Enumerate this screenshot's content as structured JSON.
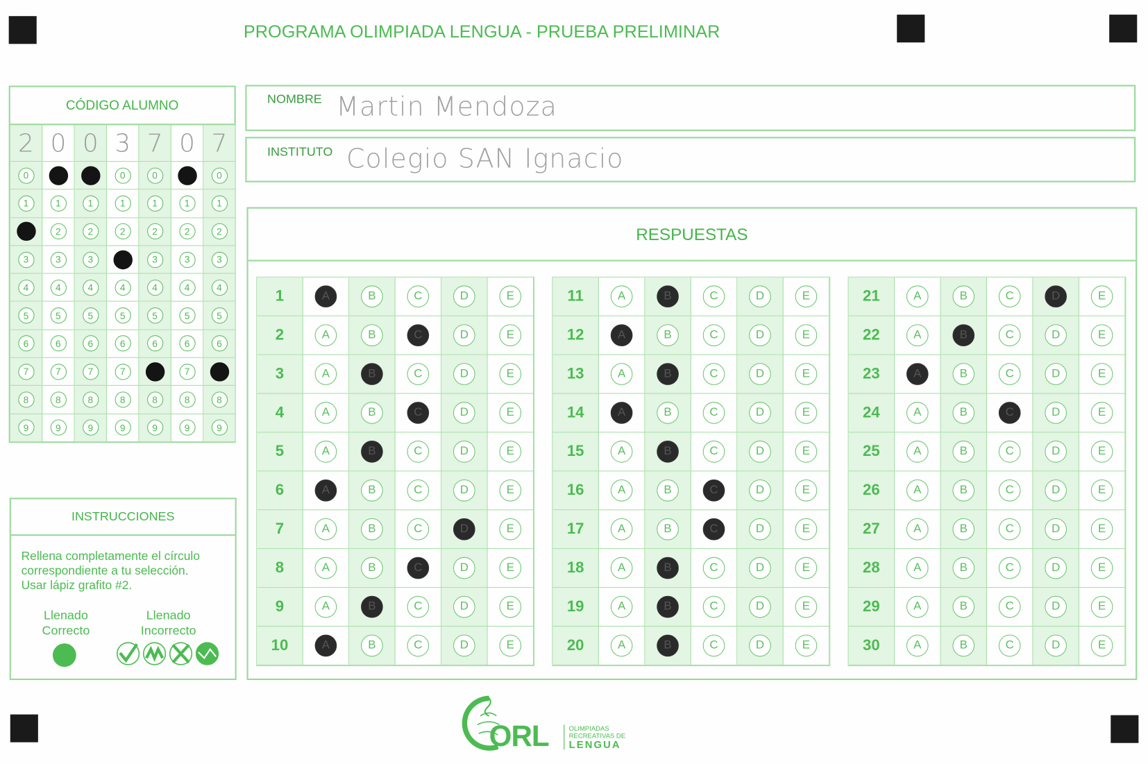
{
  "title": "PROGRAMA OLIMPIADA LENGUA  - PRUEBA PRELIMINAR",
  "student_code": {
    "label": "CÓDIGO ALUMNO",
    "digits": [
      "2",
      "0",
      "0",
      "3",
      "7",
      "0",
      "7"
    ],
    "bubble_values": [
      "0",
      "1",
      "2",
      "3",
      "4",
      "5",
      "6",
      "7",
      "8",
      "9"
    ]
  },
  "name_field": {
    "label": "NOMBRE",
    "value": "Martin   Mendoza"
  },
  "institute_field": {
    "label": "INSTITUTO",
    "value": "Colegio SAN Ignacio"
  },
  "answers": {
    "label": "RESPUESTAS",
    "options": [
      "A",
      "B",
      "C",
      "D",
      "E"
    ],
    "questions": [
      {
        "n": "1",
        "mark": "A"
      },
      {
        "n": "2",
        "mark": "C"
      },
      {
        "n": "3",
        "mark": "B"
      },
      {
        "n": "4",
        "mark": "C"
      },
      {
        "n": "5",
        "mark": "B"
      },
      {
        "n": "6",
        "mark": "A"
      },
      {
        "n": "7",
        "mark": "D"
      },
      {
        "n": "8",
        "mark": "C"
      },
      {
        "n": "9",
        "mark": "B"
      },
      {
        "n": "10",
        "mark": "A"
      },
      {
        "n": "11",
        "mark": "B"
      },
      {
        "n": "12",
        "mark": "A"
      },
      {
        "n": "13",
        "mark": "B"
      },
      {
        "n": "14",
        "mark": "A"
      },
      {
        "n": "15",
        "mark": "B"
      },
      {
        "n": "16",
        "mark": "C"
      },
      {
        "n": "17",
        "mark": "C"
      },
      {
        "n": "18",
        "mark": "B"
      },
      {
        "n": "19",
        "mark": "B"
      },
      {
        "n": "20",
        "mark": "B"
      },
      {
        "n": "21",
        "mark": "D"
      },
      {
        "n": "22",
        "mark": "B"
      },
      {
        "n": "23",
        "mark": "A"
      },
      {
        "n": "24",
        "mark": "C"
      },
      {
        "n": "25",
        "mark": null
      },
      {
        "n": "26",
        "mark": null
      },
      {
        "n": "27",
        "mark": null
      },
      {
        "n": "28",
        "mark": null
      },
      {
        "n": "29",
        "mark": null
      },
      {
        "n": "30",
        "mark": null
      }
    ]
  },
  "instructions": {
    "label": "INSTRUCCIONES",
    "lines": [
      "Rellena completamente el círculo",
      "correspondiente a tu selección.",
      "Usar lápiz grafito #2."
    ],
    "correct": {
      "line1": "Llenado",
      "line2": "Correcto"
    },
    "incorrect": {
      "line1": "Llenado",
      "line2": "Incorrecto"
    }
  },
  "logo": {
    "letters": "ORL",
    "line1": "OLIMPIADAS",
    "line2": "RECREATIVAS DE",
    "line3": "LENGUA"
  },
  "colors": {
    "accent": "#4cbb52",
    "line": "#9ad89c",
    "shade": "#e3f5e3",
    "pencil": "#141414"
  }
}
